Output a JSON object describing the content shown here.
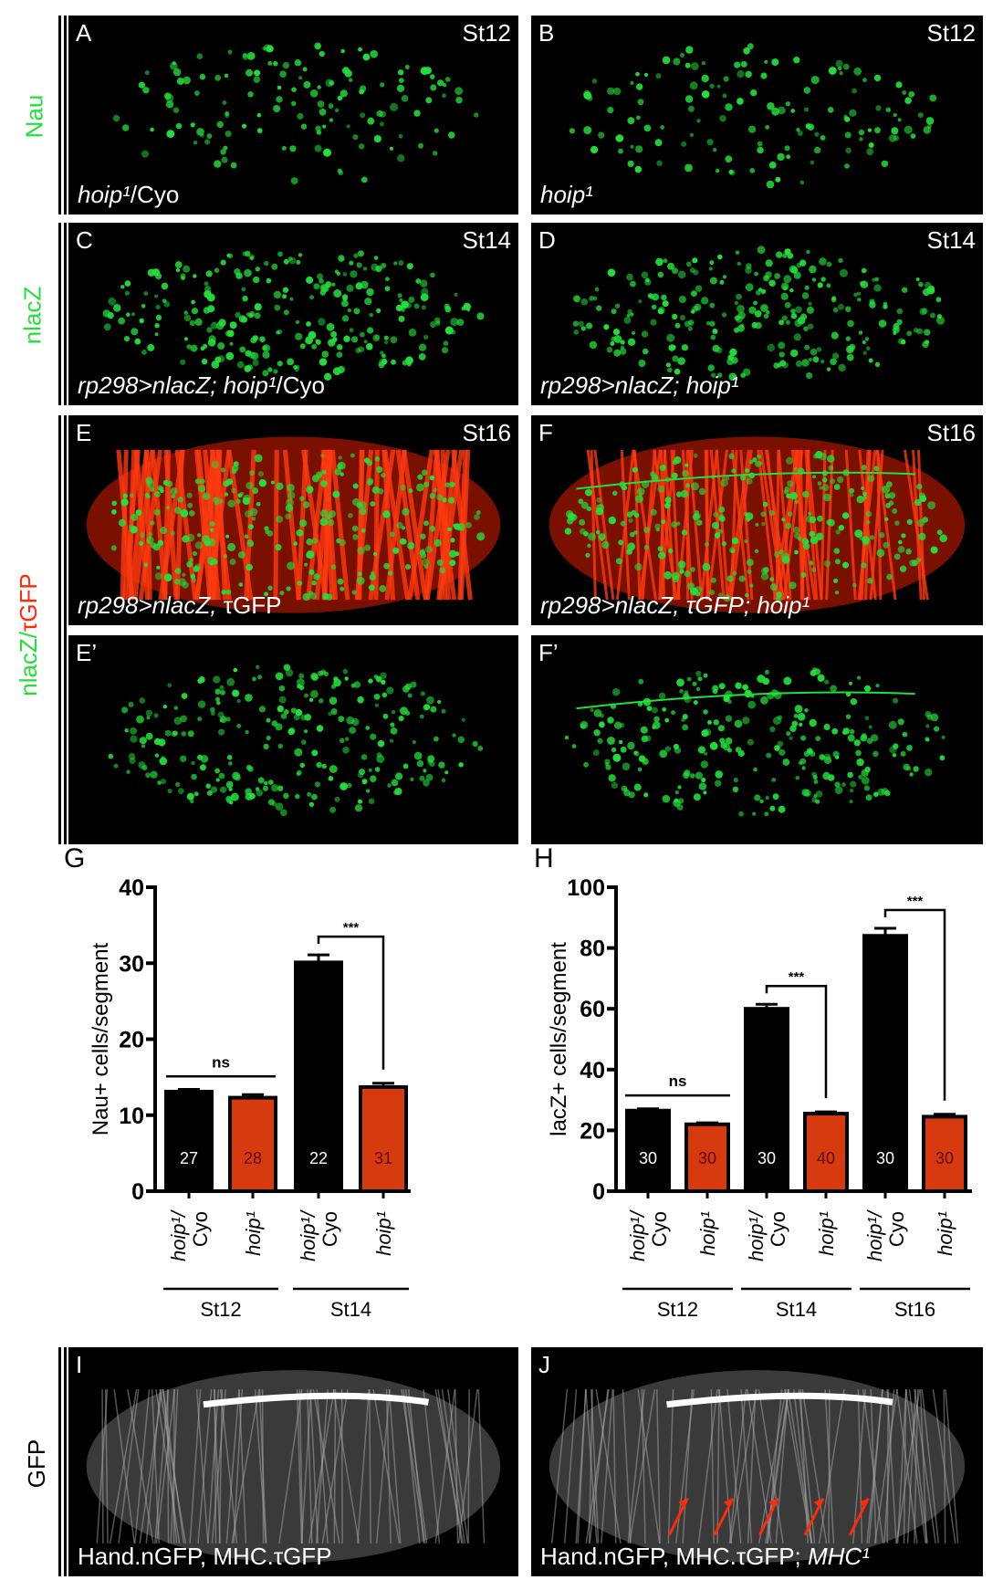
{
  "row_labels": {
    "nau": "Nau",
    "nlacz": "nlacZ",
    "nlacz_tgfp_a": "nlacZ/",
    "nlacz_tgfp_b": "τGFP",
    "gfp": "GFP"
  },
  "panels": [
    {
      "id": "A",
      "stage": "St12",
      "geno_italic": "hoip¹",
      "geno_plain": "/Cyo"
    },
    {
      "id": "B",
      "stage": "St12",
      "geno_italic": "hoip¹",
      "geno_plain": ""
    },
    {
      "id": "C",
      "stage": "St14",
      "geno_italic": "rp298>nlacZ; hoip¹",
      "geno_plain": "/Cyo"
    },
    {
      "id": "D",
      "stage": "St14",
      "geno_italic": "rp298>nlacZ; hoip¹",
      "geno_plain": ""
    },
    {
      "id": "E",
      "stage": "St16",
      "geno_italic": "rp298>nlacZ,",
      "geno_plain": " τGFP"
    },
    {
      "id": "F",
      "stage": "St16",
      "geno_italic": "rp298>nlacZ, τGFP; hoip¹",
      "geno_plain": ""
    },
    {
      "id": "E’",
      "stage": "",
      "geno_italic": "",
      "geno_plain": ""
    },
    {
      "id": "F’",
      "stage": "",
      "geno_italic": "",
      "geno_plain": ""
    },
    {
      "id": "I",
      "stage": "",
      "geno_italic": "",
      "geno_plain": "Hand.nGFP, MHC.τGFP"
    },
    {
      "id": "J",
      "stage": "",
      "geno_italic": "MHC¹",
      "geno_plain": "Hand.nGFP, MHC.τGFP; "
    }
  ],
  "colors": {
    "green": "#22e03a",
    "red": "#ff2a0a",
    "wt_bar": "#000000",
    "mut_bar": "#d83a10"
  },
  "chart_data": [
    {
      "type": "bar",
      "panel": "G",
      "ylabel": "Nau+ cells/segment",
      "ylim": [
        0,
        40
      ],
      "yticks": [
        0,
        10,
        20,
        30,
        40
      ],
      "categories": [
        "hoip¹/ Cyo",
        "hoip¹",
        "hoip¹/ Cyo",
        "hoip¹"
      ],
      "groups": [
        {
          "label": "St12",
          "bars": [
            0,
            1
          ]
        },
        {
          "label": "St14",
          "bars": [
            2,
            3
          ]
        }
      ],
      "values": [
        13.1,
        12.3,
        30.1,
        13.7
      ],
      "errors": [
        0.3,
        0.4,
        1.0,
        0.5
      ],
      "n": [
        "27",
        "28",
        "22",
        "31"
      ],
      "colors": [
        "wt",
        "mut",
        "wt",
        "mut"
      ],
      "significance": [
        {
          "bars": [
            0,
            1
          ],
          "label": "ns"
        },
        {
          "bars": [
            2,
            3
          ],
          "label": "***"
        }
      ]
    },
    {
      "type": "bar",
      "panel": "H",
      "ylabel": "lacZ+ cells/segment",
      "ylim": [
        0,
        100
      ],
      "yticks": [
        0,
        20,
        40,
        60,
        80,
        100
      ],
      "categories": [
        "hoip¹/ Cyo",
        "hoip¹",
        "hoip¹/ Cyo",
        "hoip¹",
        "hoip¹/ Cyo",
        "hoip¹"
      ],
      "groups": [
        {
          "label": "St12",
          "bars": [
            0,
            1
          ]
        },
        {
          "label": "St14",
          "bars": [
            2,
            3
          ]
        },
        {
          "label": "St16",
          "bars": [
            4,
            5
          ]
        }
      ],
      "values": [
        26.5,
        22,
        60,
        25.5,
        84,
        24.5
      ],
      "errors": [
        0.6,
        0.5,
        1.5,
        0.6,
        2.5,
        0.8
      ],
      "n": [
        "30",
        "30",
        "30",
        "40",
        "30",
        "30"
      ],
      "colors": [
        "wt",
        "mut",
        "wt",
        "mut",
        "wt",
        "mut"
      ],
      "significance": [
        {
          "bars": [
            0,
            1
          ],
          "label": "ns"
        },
        {
          "bars": [
            2,
            3
          ],
          "label": "***"
        },
        {
          "bars": [
            4,
            5
          ],
          "label": "***"
        }
      ]
    }
  ]
}
